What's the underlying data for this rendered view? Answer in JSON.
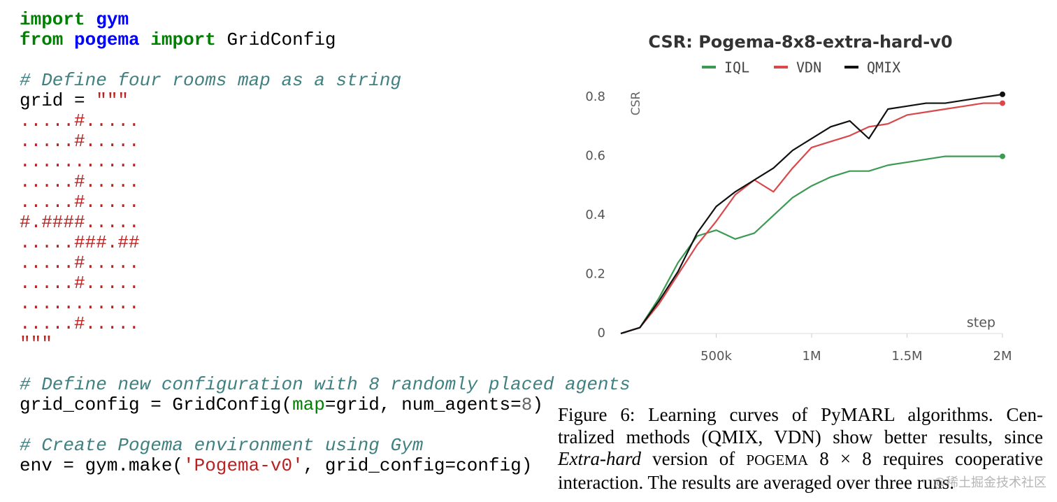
{
  "code": {
    "lines": [
      {
        "tokens": [
          {
            "text": "import",
            "color": "#008000",
            "bold": true
          },
          {
            "text": " ",
            "color": "#000000"
          },
          {
            "text": "gym",
            "color": "#0000ff",
            "bold": true
          }
        ]
      },
      {
        "tokens": [
          {
            "text": "from",
            "color": "#008000",
            "bold": true
          },
          {
            "text": " ",
            "color": "#000000"
          },
          {
            "text": "pogema",
            "color": "#0000ff",
            "bold": true
          },
          {
            "text": " ",
            "color": "#000000"
          },
          {
            "text": "import",
            "color": "#008000",
            "bold": true
          },
          {
            "text": " GridConfig",
            "color": "#000000"
          }
        ]
      },
      {
        "tokens": []
      },
      {
        "tokens": [
          {
            "text": "# Define four rooms map as a string",
            "color": "#408080",
            "italic": true
          }
        ]
      },
      {
        "tokens": [
          {
            "text": "grid = ",
            "color": "#000000"
          },
          {
            "text": "\"\"\"",
            "color": "#ba2121"
          }
        ]
      },
      {
        "tokens": [
          {
            "text": ".....#.....",
            "color": "#ba2121"
          }
        ]
      },
      {
        "tokens": [
          {
            "text": ".....#.....",
            "color": "#ba2121"
          }
        ]
      },
      {
        "tokens": [
          {
            "text": "...........",
            "color": "#ba2121"
          }
        ]
      },
      {
        "tokens": [
          {
            "text": ".....#.....",
            "color": "#ba2121"
          }
        ]
      },
      {
        "tokens": [
          {
            "text": ".....#.....",
            "color": "#ba2121"
          }
        ]
      },
      {
        "tokens": [
          {
            "text": "#.####.....",
            "color": "#ba2121"
          }
        ]
      },
      {
        "tokens": [
          {
            "text": ".....###.##",
            "color": "#ba2121"
          }
        ]
      },
      {
        "tokens": [
          {
            "text": ".....#.....",
            "color": "#ba2121"
          }
        ]
      },
      {
        "tokens": [
          {
            "text": ".....#.....",
            "color": "#ba2121"
          }
        ]
      },
      {
        "tokens": [
          {
            "text": "...........",
            "color": "#ba2121"
          }
        ]
      },
      {
        "tokens": [
          {
            "text": ".....#.....",
            "color": "#ba2121"
          }
        ]
      },
      {
        "tokens": [
          {
            "text": "\"\"\"",
            "color": "#ba2121"
          }
        ]
      },
      {
        "tokens": []
      },
      {
        "tokens": [
          {
            "text": "# Define new configuration with 8 randomly placed agents",
            "color": "#408080",
            "italic": true
          }
        ]
      },
      {
        "tokens": [
          {
            "text": "grid_config = GridConfig(",
            "color": "#000000"
          },
          {
            "text": "map",
            "color": "#008000"
          },
          {
            "text": "=grid, num_agents=",
            "color": "#000000"
          },
          {
            "text": "8",
            "color": "#666666"
          },
          {
            "text": ")",
            "color": "#000000"
          }
        ]
      },
      {
        "tokens": []
      },
      {
        "tokens": [
          {
            "text": "# Create Pogema environment using Gym",
            "color": "#408080",
            "italic": true
          }
        ]
      },
      {
        "tokens": [
          {
            "text": "env = gym.make(",
            "color": "#000000"
          },
          {
            "text": "'Pogema-v0'",
            "color": "#ba2121"
          },
          {
            "text": ", grid_config=config)",
            "color": "#000000"
          }
        ]
      }
    ]
  },
  "chart_data": {
    "type": "line",
    "title": "CSR: Pogema-8x8-extra-hard-v0",
    "ylabel": "CSR",
    "xlabel": "step",
    "x": [
      0,
      100000,
      200000,
      300000,
      400000,
      500000,
      600000,
      700000,
      800000,
      900000,
      1000000,
      1100000,
      1200000,
      1300000,
      1400000,
      1500000,
      1600000,
      1700000,
      1800000,
      1900000,
      2000000
    ],
    "series": [
      {
        "name": "IQL",
        "color": "#3c9a52",
        "values": [
          0,
          0.02,
          0.12,
          0.24,
          0.33,
          0.35,
          0.32,
          0.34,
          0.4,
          0.46,
          0.5,
          0.53,
          0.55,
          0.55,
          0.57,
          0.58,
          0.59,
          0.6,
          0.6,
          0.6,
          0.6
        ]
      },
      {
        "name": "VDN",
        "color": "#d9484a",
        "values": [
          0,
          0.02,
          0.1,
          0.2,
          0.3,
          0.38,
          0.47,
          0.52,
          0.48,
          0.56,
          0.63,
          0.65,
          0.67,
          0.7,
          0.71,
          0.74,
          0.75,
          0.76,
          0.77,
          0.78,
          0.78
        ]
      },
      {
        "name": "QMIX",
        "color": "#111111",
        "values": [
          0,
          0.02,
          0.11,
          0.21,
          0.34,
          0.43,
          0.48,
          0.52,
          0.56,
          0.62,
          0.66,
          0.7,
          0.72,
          0.66,
          0.76,
          0.77,
          0.78,
          0.78,
          0.79,
          0.8,
          0.81
        ]
      }
    ],
    "xlim": [
      0,
      2000000
    ],
    "ylim": [
      0,
      0.85
    ],
    "xticks": [
      {
        "value": 500000,
        "label": "500k"
      },
      {
        "value": 1000000,
        "label": "1M"
      },
      {
        "value": 1500000,
        "label": "1.5M"
      },
      {
        "value": 2000000,
        "label": "2M"
      }
    ],
    "yticks": [
      0,
      0.2,
      0.4,
      0.6,
      0.8
    ],
    "grid": false,
    "legend": "top"
  },
  "caption": {
    "lines": [
      [
        {
          "text": "Figure 6: Learning curves of PyMARL algorithms. Cen-"
        }
      ],
      [
        {
          "text": "tralized methods (QMIX, VDN) show better results, since"
        }
      ],
      [
        {
          "text": "Extra-hard",
          "italic": true
        },
        {
          "text": " version of "
        },
        {
          "text": "POGEMA",
          "smallcaps": true
        },
        {
          "text": " 8 × 8 requires cooperative"
        }
      ],
      [
        {
          "text": "interaction. The results are averaged over three runs."
        }
      ]
    ]
  },
  "watermark": "@稀土掘金技术社区"
}
